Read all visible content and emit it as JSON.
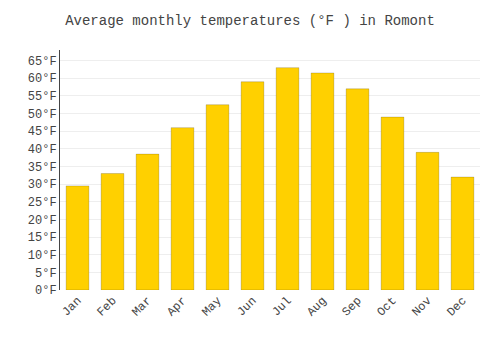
{
  "chart_data": {
    "type": "bar",
    "title": "Average monthly temperatures (°F ) in Romont",
    "categories": [
      "Jan",
      "Feb",
      "Mar",
      "Apr",
      "May",
      "Jun",
      "Jul",
      "Aug",
      "Sep",
      "Oct",
      "Nov",
      "Dec"
    ],
    "values": [
      29.5,
      33.0,
      38.5,
      46.0,
      52.5,
      59.0,
      63.0,
      61.5,
      57.0,
      49.0,
      39.0,
      32.0
    ],
    "color": "#FFD000",
    "ylim": [
      0,
      68
    ],
    "yticks": [
      {
        "value": 0,
        "label": "0°F"
      },
      {
        "value": 5,
        "label": "5°F"
      },
      {
        "value": 10,
        "label": "10°F"
      },
      {
        "value": 15,
        "label": "15°F"
      },
      {
        "value": 20,
        "label": "20°F"
      },
      {
        "value": 25,
        "label": "25°F"
      },
      {
        "value": 30,
        "label": "30°F"
      },
      {
        "value": 35,
        "label": "35°F"
      },
      {
        "value": 40,
        "label": "40°F"
      },
      {
        "value": 45,
        "label": "45°F"
      },
      {
        "value": 50,
        "label": "50°F"
      },
      {
        "value": 55,
        "label": "55°F"
      },
      {
        "value": 60,
        "label": "60°F"
      },
      {
        "value": 65,
        "label": "65°F"
      }
    ],
    "grid": true
  }
}
